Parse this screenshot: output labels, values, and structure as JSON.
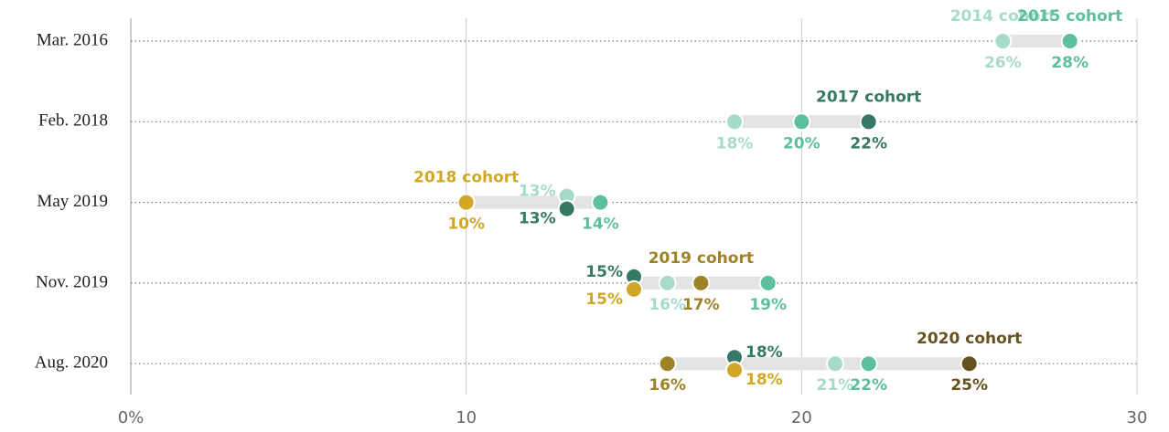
{
  "chart_data": {
    "type": "dot",
    "categories": [
      "Mar. 2016",
      "Feb. 2018",
      "May 2019",
      "Nov. 2019",
      "Aug. 2020"
    ],
    "series": [
      {
        "name": "2014 cohort",
        "color": "#a6dcc7",
        "values": [
          26,
          18,
          13,
          16,
          21
        ],
        "value_labels": [
          "26%",
          "18%",
          "13%",
          "16%",
          "21%"
        ]
      },
      {
        "name": "2015 cohort",
        "color": "#5cbf9e",
        "values": [
          28,
          20,
          14,
          19,
          22
        ],
        "value_labels": [
          "28%",
          "20%",
          "14%",
          "19%",
          "22%"
        ]
      },
      {
        "name": "2017 cohort",
        "color": "#367866",
        "values": [
          null,
          22,
          13,
          15,
          18
        ],
        "value_labels": [
          null,
          "22%",
          "13%",
          "15%",
          "18%"
        ]
      },
      {
        "name": "2018 cohort",
        "color": "#d2a725",
        "values": [
          null,
          null,
          10,
          15,
          18
        ],
        "value_labels": [
          null,
          null,
          "10%",
          "15%",
          "18%"
        ]
      },
      {
        "name": "2019 cohort",
        "color": "#9d8227",
        "values": [
          null,
          null,
          null,
          17,
          16
        ],
        "value_labels": [
          null,
          null,
          null,
          "17%",
          "16%"
        ]
      },
      {
        "name": "2020 cohort",
        "color": "#66521f",
        "values": [
          null,
          null,
          null,
          null,
          25
        ],
        "value_labels": [
          null,
          null,
          null,
          null,
          "25%"
        ]
      }
    ],
    "xlim": [
      0,
      30
    ],
    "xticks": [
      {
        "value": 0,
        "label": "0%"
      },
      10,
      20,
      30
    ],
    "grid": true
  }
}
